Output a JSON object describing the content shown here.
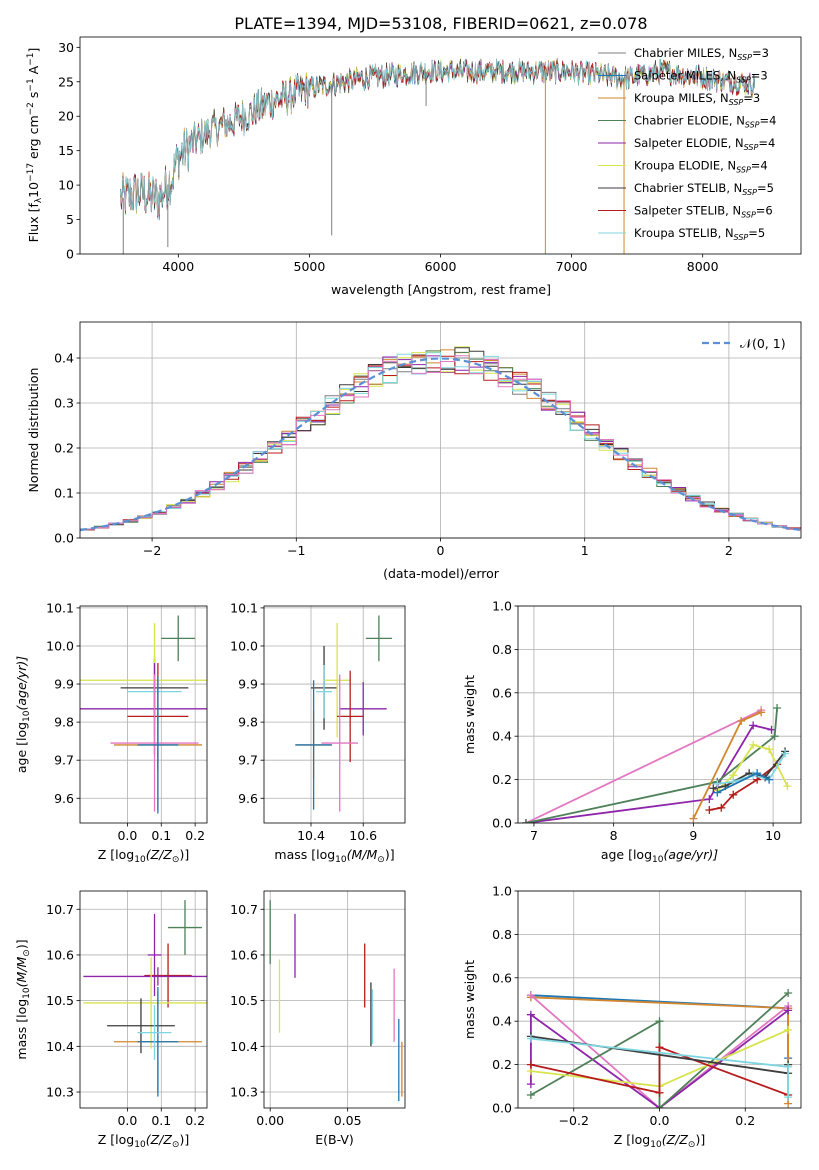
{
  "figure_title": "PLATE=1394, MJD=53108, FIBERID=0621, z=0.078",
  "series_colors": {
    "Chabrier MILES": "#7f7f7f",
    "Salpeter MILES": "#1f77b4",
    "Kroupa MILES": "#d1862f",
    "Chabrier ELODIE": "#4e8059",
    "Salpeter ELODIE": "#8e24aa",
    "Kroupa ELODIE": "#d8e34d",
    "Chabrier STELIB": "#3d3d3d",
    "Salpeter STELIB": "#b71c1c",
    "Kroupa STELIB": "#7fd6e0",
    "extra_pink": "#e377c2",
    "extra_orange": "#ff7f0e",
    "normal": "#5b8fd6"
  },
  "chart_data": [
    {
      "id": "spectrum",
      "type": "line",
      "xlabel": "wavelength [Angstrom, rest frame]",
      "ylabel_main": "Flux [f",
      "ylabel_sub1": "λ",
      "ylabel_mid": "10",
      "ylabel_sup1": "−17",
      "ylabel_mid2": " erg cm",
      "ylabel_sup2": "−2",
      "ylabel_mid3": " s",
      "ylabel_sup3": "−1",
      "ylabel_mid4": " A",
      "ylabel_sup4": "−1",
      "ylabel_end": "]",
      "xlim": [
        3250,
        8750
      ],
      "ylim": [
        0,
        31.5
      ],
      "xticks": [
        4000,
        5000,
        6000,
        7000,
        8000
      ],
      "yticks": [
        0,
        5,
        10,
        15,
        20,
        25,
        30
      ],
      "legend_position": "right",
      "legend": [
        {
          "name": "Chabrier MILES",
          "nssp": "3"
        },
        {
          "name": "Salpeter MILES",
          "nssp": "3"
        },
        {
          "name": "Kroupa MILES",
          "nssp": "3"
        },
        {
          "name": "Chabrier ELODIE",
          "nssp": "4"
        },
        {
          "name": "Salpeter ELODIE",
          "nssp": "4"
        },
        {
          "name": "Kroupa ELODIE",
          "nssp": "4"
        },
        {
          "name": "Chabrier STELIB",
          "nssp": "5"
        },
        {
          "name": "Salpeter STELIB",
          "nssp": "6"
        },
        {
          "name": "Kroupa STELIB",
          "nssp": "5"
        }
      ],
      "nssp_prefix": "N",
      "nssp_sub": "SSP",
      "continuum_knots": [
        [
          3560,
          8
        ],
        [
          3700,
          9
        ],
        [
          3850,
          8
        ],
        [
          3950,
          11
        ],
        [
          4000,
          14
        ],
        [
          4100,
          16
        ],
        [
          4250,
          18
        ],
        [
          4500,
          20
        ],
        [
          4700,
          22
        ],
        [
          5000,
          24
        ],
        [
          5400,
          25.5
        ],
        [
          5900,
          26.5
        ],
        [
          6500,
          26.5
        ],
        [
          7000,
          26.5
        ],
        [
          7400,
          25.5
        ],
        [
          7700,
          26.5
        ],
        [
          8400,
          24.5
        ]
      ],
      "spikes": [
        [
          3580,
          0
        ],
        [
          3920,
          1
        ],
        [
          5170,
          2.7
        ],
        [
          5890,
          21.5
        ],
        [
          6800,
          0
        ],
        [
          7400,
          0
        ]
      ]
    },
    {
      "id": "residuals",
      "type": "histogram",
      "xlabel": "(data-model)/error",
      "ylabel": "Normed distribution",
      "xlim": [
        -2.5,
        2.5
      ],
      "ylim": [
        0,
        0.48
      ],
      "xticks": [
        -2,
        -1,
        0,
        1,
        2
      ],
      "yticks": [
        0.0,
        0.1,
        0.2,
        0.3,
        0.4
      ],
      "grid": true,
      "legend_label": "𝒩(0, 1)",
      "legend_position": "top-right",
      "bin_width": 0.1
    },
    {
      "id": "age_vs_Z",
      "type": "errorbar",
      "xlabel_main": "Z [log",
      "xlabel_sub": "10",
      "xlabel_end": "(Z/Z",
      "xlabel_sun": "⊙",
      "xlabel_close": ")]",
      "ylabel_main": "age  [log",
      "ylabel_sub": "10",
      "ylabel_end": "(age/yr)]",
      "xlim": [
        -0.14,
        0.235
      ],
      "ylim": [
        9.535,
        10.105
      ],
      "xticks": [
        0.0,
        0.1,
        0.2
      ],
      "yticks": [
        9.6,
        9.7,
        9.8,
        9.9,
        10.0,
        10.1
      ],
      "grid": true,
      "points": [
        {
          "x": 0.15,
          "y": 10.02,
          "xerr": 0.05,
          "yerr": 0.06,
          "color": "Chabrier ELODIE"
        },
        {
          "x": 0.08,
          "y": 9.89,
          "xerr": 0.1,
          "yerr": 0.08,
          "color": "Chabrier STELIB"
        },
        {
          "x": 0.08,
          "y": 9.91,
          "xerr": 0.22,
          "yerr": 0.15,
          "color": "Kroupa ELODIE"
        },
        {
          "x": 0.08,
          "y": 9.88,
          "xerr": 0.08,
          "yerr": 0.07,
          "color": "Kroupa STELIB"
        },
        {
          "x": 0.08,
          "y": 9.835,
          "xerr": 0.22,
          "yerr": 0.12,
          "color": "Salpeter ELODIE"
        },
        {
          "x": 0.09,
          "y": 9.815,
          "xerr": 0.09,
          "yerr": 0.14,
          "color": "Salpeter STELIB"
        },
        {
          "x": 0.08,
          "y": 9.745,
          "xerr": 0.13,
          "yerr": 0.18,
          "color": "extra_pink"
        },
        {
          "x": 0.09,
          "y": 9.74,
          "xerr": 0.13,
          "yerr": 0.17,
          "color": "Kroupa MILES"
        },
        {
          "x": 0.09,
          "y": 9.74,
          "xerr": 0.06,
          "yerr": 0.18,
          "color": "Salpeter MILES"
        }
      ]
    },
    {
      "id": "age_vs_mass",
      "type": "errorbar",
      "xlabel_main": "mass [log",
      "xlabel_sub": "10",
      "xlabel_end": "(M/M",
      "xlabel_sun": "⊙",
      "xlabel_close": ")]",
      "xlim": [
        10.22,
        10.76
      ],
      "ylim": [
        9.535,
        10.105
      ],
      "xticks": [
        10.4,
        10.6
      ],
      "yticks": [
        9.6,
        9.7,
        9.8,
        9.9,
        10.0,
        10.1
      ],
      "grid": true,
      "points": [
        {
          "x": 10.66,
          "y": 10.02,
          "xerr": 0.05,
          "yerr": 0.06,
          "color": "Chabrier ELODIE"
        },
        {
          "x": 10.45,
          "y": 9.89,
          "xerr": 0.05,
          "yerr": 0.11,
          "color": "Chabrier STELIB"
        },
        {
          "x": 10.5,
          "y": 9.91,
          "xerr": 0.05,
          "yerr": 0.15,
          "color": "Kroupa ELODIE"
        },
        {
          "x": 10.45,
          "y": 9.88,
          "xerr": 0.03,
          "yerr": 0.07,
          "color": "Kroupa STELIB"
        },
        {
          "x": 10.6,
          "y": 9.835,
          "xerr": 0.09,
          "yerr": 0.07,
          "color": "Salpeter ELODIE"
        },
        {
          "x": 10.55,
          "y": 9.815,
          "xerr": 0.05,
          "yerr": 0.12,
          "color": "Salpeter STELIB"
        },
        {
          "x": 10.51,
          "y": 9.745,
          "xerr": 0.07,
          "yerr": 0.18,
          "color": "extra_pink"
        },
        {
          "x": 10.41,
          "y": 9.74,
          "xerr": 0.07,
          "yerr": 0.09,
          "color": "Kroupa MILES"
        },
        {
          "x": 10.41,
          "y": 9.74,
          "xerr": 0.07,
          "yerr": 0.17,
          "color": "Salpeter MILES"
        }
      ]
    },
    {
      "id": "weight_vs_age",
      "type": "line",
      "xlabel_main": "age  [log",
      "xlabel_sub": "10",
      "xlabel_end": "(age/yr)]",
      "ylabel": "mass weight",
      "xlim": [
        6.8,
        10.35
      ],
      "ylim": [
        0,
        1.0
      ],
      "xticks": [
        7,
        8,
        9,
        10
      ],
      "yticks": [
        0.0,
        0.2,
        0.4,
        0.6,
        0.8,
        1.0
      ],
      "grid": true,
      "series": [
        {
          "color": "extra_pink",
          "x": [
            6.9,
            9.85
          ],
          "y": [
            0.0,
            0.52
          ]
        },
        {
          "color": "Salpeter ELODIE",
          "x": [
            6.9,
            9.2,
            9.75,
            9.98
          ],
          "y": [
            0.0,
            0.11,
            0.45,
            0.43
          ]
        },
        {
          "color": "Chabrier ELODIE",
          "x": [
            6.9,
            9.3,
            10.02,
            10.05
          ],
          "y": [
            0.0,
            0.19,
            0.4,
            0.53
          ]
        },
        {
          "color": "Kroupa MILES",
          "x": [
            9.0,
            9.6,
            9.85
          ],
          "y": [
            0.02,
            0.47,
            0.51
          ]
        },
        {
          "color": "Salpeter STELIB",
          "x": [
            9.2,
            9.35,
            9.5,
            9.8,
            10.05
          ],
          "y": [
            0.06,
            0.07,
            0.13,
            0.2,
            0.27
          ]
        },
        {
          "color": "Kroupa ELODIE",
          "x": [
            9.3,
            9.5,
            9.75,
            9.95,
            10.18
          ],
          "y": [
            0.15,
            0.22,
            0.36,
            0.34,
            0.17
          ]
        },
        {
          "color": "Chabrier STELIB",
          "x": [
            9.25,
            9.4,
            9.7,
            9.9,
            10.15
          ],
          "y": [
            0.16,
            0.17,
            0.23,
            0.21,
            0.33
          ]
        },
        {
          "color": "Kroupa STELIB",
          "x": [
            9.3,
            9.5,
            9.75,
            9.95,
            10.15
          ],
          "y": [
            0.18,
            0.19,
            0.22,
            0.2,
            0.32
          ]
        },
        {
          "color": "Salpeter MILES",
          "x": [
            9.3,
            9.8,
            9.95
          ],
          "y": [
            0.14,
            0.23,
            0.2
          ]
        }
      ]
    },
    {
      "id": "mass_vs_Z",
      "type": "errorbar",
      "xlabel_main": "Z [log",
      "xlabel_sub": "10",
      "xlabel_end": "(Z/Z",
      "xlabel_sun": "⊙",
      "xlabel_close": ")]",
      "ylabel_main": "mass [log",
      "ylabel_sub": "10",
      "ylabel_end": "(M/M",
      "ylabel_sun": "⊙",
      "ylabel_close": ")]",
      "xlim": [
        -0.14,
        0.235
      ],
      "ylim": [
        10.265,
        10.74
      ],
      "xticks": [
        0.0,
        0.1,
        0.2
      ],
      "yticks": [
        10.3,
        10.4,
        10.5,
        10.6,
        10.7
      ],
      "grid": true,
      "points": [
        {
          "x": 0.17,
          "y": 10.66,
          "xerr": 0.05,
          "yerr": 0.06,
          "color": "Chabrier ELODIE"
        },
        {
          "x": 0.08,
          "y": 10.6,
          "xerr": 0.02,
          "yerr": 0.09,
          "color": "Salpeter ELODIE"
        },
        {
          "x": 0.12,
          "y": 10.555,
          "xerr": 0.07,
          "yerr": 0.07,
          "color": "Salpeter STELIB"
        },
        {
          "x": 0.09,
          "y": 10.553,
          "xerr": 0.22,
          "yerr": 0.02,
          "color": "Salpeter ELODIE"
        },
        {
          "x": 0.07,
          "y": 10.495,
          "xerr": 0.2,
          "yerr": 0.1,
          "color": "Kroupa ELODIE"
        },
        {
          "x": 0.04,
          "y": 10.445,
          "xerr": 0.1,
          "yerr": 0.06,
          "color": "Chabrier STELIB"
        },
        {
          "x": 0.09,
          "y": 10.41,
          "xerr": 0.13,
          "yerr": 0.11,
          "color": "Kroupa MILES"
        },
        {
          "x": 0.09,
          "y": 10.41,
          "xerr": 0.06,
          "yerr": 0.12,
          "color": "Salpeter MILES"
        },
        {
          "x": 0.08,
          "y": 10.43,
          "xerr": 0.05,
          "yerr": 0.06,
          "color": "Kroupa STELIB"
        }
      ]
    },
    {
      "id": "mass_vs_EBV",
      "type": "errorbar",
      "xlabel": "E(B-V)",
      "xlim": [
        -0.004,
        0.087
      ],
      "ylim": [
        10.265,
        10.74
      ],
      "xticks": [
        0.0,
        0.05
      ],
      "yticks": [
        10.3,
        10.4,
        10.5,
        10.6,
        10.7
      ],
      "grid": true,
      "points": [
        {
          "x": 0.0,
          "y": 10.65,
          "yerr": 0.07,
          "color": "Chabrier ELODIE"
        },
        {
          "x": 0.006,
          "y": 10.51,
          "yerr": 0.08,
          "color": "Kroupa ELODIE"
        },
        {
          "x": 0.016,
          "y": 10.62,
          "yerr": 0.07,
          "color": "Salpeter ELODIE"
        },
        {
          "x": 0.061,
          "y": 10.555,
          "yerr": 0.07,
          "color": "Salpeter STELIB"
        },
        {
          "x": 0.065,
          "y": 10.47,
          "yerr": 0.07,
          "color": "Chabrier STELIB"
        },
        {
          "x": 0.066,
          "y": 10.465,
          "yerr": 0.06,
          "color": "Kroupa STELIB"
        },
        {
          "x": 0.08,
          "y": 10.49,
          "yerr": 0.08,
          "color": "extra_pink"
        },
        {
          "x": 0.083,
          "y": 10.37,
          "yerr": 0.09,
          "color": "Salpeter MILES"
        },
        {
          "x": 0.085,
          "y": 10.35,
          "yerr": 0.06,
          "color": "Kroupa MILES"
        }
      ]
    },
    {
      "id": "weight_vs_Z",
      "type": "line",
      "xlabel_main": "Z [log",
      "xlabel_sub": "10",
      "xlabel_end": "(Z/Z",
      "xlabel_sun": "⊙",
      "xlabel_close": ")]",
      "ylabel": "mass weight",
      "xlim": [
        -0.33,
        0.33
      ],
      "ylim": [
        0,
        1.0
      ],
      "xticks": [
        -0.2,
        0.0,
        0.2
      ],
      "yticks": [
        0.0,
        0.2,
        0.4,
        0.6,
        0.8,
        1.0
      ],
      "grid": true,
      "series": [
        {
          "color": "Salpeter MILES",
          "x": [
            -0.3,
            0.3,
            0.3
          ],
          "y": [
            0.52,
            0.46,
            0.23
          ]
        },
        {
          "color": "Kroupa MILES",
          "x": [
            -0.3,
            0.3,
            0.3
          ],
          "y": [
            0.51,
            0.46,
            0.02
          ]
        },
        {
          "color": "extra_pink",
          "x": [
            -0.3,
            0.0,
            0.3
          ],
          "y": [
            0.52,
            0.0,
            0.47
          ]
        },
        {
          "color": "Salpeter ELODIE",
          "x": [
            -0.3,
            -0.3,
            0.0,
            0.3
          ],
          "y": [
            0.11,
            0.43,
            0.0,
            0.45
          ]
        },
        {
          "color": "Chabrier ELODIE",
          "x": [
            -0.3,
            0.0,
            0.0,
            0.3
          ],
          "y": [
            0.06,
            0.4,
            0.0,
            0.53
          ]
        },
        {
          "color": "Kroupa ELODIE",
          "x": [
            -0.3,
            0.0,
            0.3
          ],
          "y": [
            0.17,
            0.1,
            0.36
          ]
        },
        {
          "color": "Salpeter STELIB",
          "x": [
            -0.3,
            0.0,
            0.0,
            0.3
          ],
          "y": [
            0.2,
            0.07,
            0.28,
            0.06
          ]
        },
        {
          "color": "Chabrier STELIB",
          "x": [
            -0.3,
            0.3,
            0.3
          ],
          "y": [
            0.33,
            0.16,
            0.2
          ]
        },
        {
          "color": "Kroupa STELIB",
          "x": [
            -0.3,
            0.3,
            0.3
          ],
          "y": [
            0.32,
            0.19,
            0.05
          ]
        }
      ]
    }
  ]
}
